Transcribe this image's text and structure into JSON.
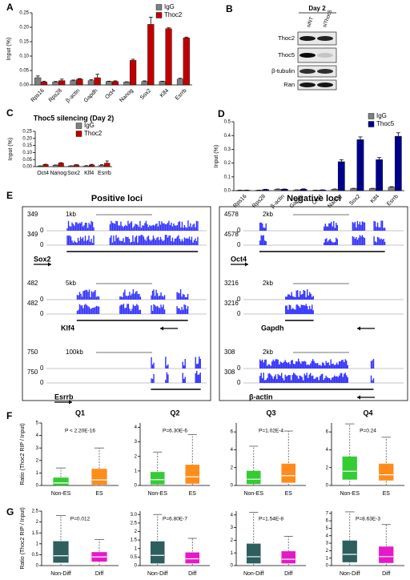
{
  "panel_labels": [
    "A",
    "B",
    "C",
    "D",
    "E",
    "F",
    "G"
  ],
  "blot": {
    "day": "Day 2",
    "lanes": [
      "siNT",
      "siThoc5"
    ],
    "rows": [
      "Thoc2",
      "Thoc5",
      "β-tubulin",
      "Ran"
    ]
  },
  "tracks": {
    "positive_title": "Positive loci",
    "negative_title": "Negative loci",
    "positive": [
      {
        "gene": "Sox2",
        "scale": "1kb",
        "max": 349,
        "min": 0
      },
      {
        "gene": "Klf4",
        "scale": "5kb",
        "max": 482,
        "min": 0
      },
      {
        "gene": "Esrrb",
        "scale": "100kb",
        "max": 750,
        "min": 0
      }
    ],
    "negative": [
      {
        "gene": "Oct4",
        "scale": "2kb",
        "max": 4578,
        "min": 0
      },
      {
        "gene": "Gapdh",
        "scale": "2kb",
        "max": 3216,
        "min": 0
      },
      {
        "gene": "β-actin",
        "scale": "2kb",
        "max": 308,
        "min": 0
      }
    ]
  },
  "chart_data": [
    {
      "type": "bar",
      "ylabel": "Input (%)",
      "categories": [
        "Rps16",
        "Rps28",
        "β-actin",
        "Gapdh",
        "Oct4",
        "Nanog",
        "Sox2",
        "Klf4",
        "Esrrb"
      ],
      "ylim": [
        0,
        0.25
      ],
      "yticks": [
        {
          "value": 0,
          "label": "0.00"
        },
        0.05,
        {
          "value": 0.1,
          "label": "0.10"
        },
        0.15,
        {
          "value": 0.2,
          "label": "0.20"
        },
        0.25
      ],
      "legend": "upper right",
      "series": [
        {
          "name": "IgG",
          "color": "#7f7f7f",
          "values": [
            0.025,
            0.01,
            0.015,
            0.015,
            0.012,
            0.01,
            0.012,
            0.012,
            0.02
          ],
          "errors": [
            0.006,
            0.002,
            0.002,
            0.003,
            0.001,
            0.001,
            0.002,
            0.001,
            0.003
          ]
        },
        {
          "name": "Thoc2",
          "color": "#c00000",
          "values": [
            0.01,
            0.015,
            0.02,
            0.025,
            0.012,
            0.085,
            0.21,
            0.195,
            0.163
          ],
          "errors": [
            0.003,
            0.005,
            0.002,
            0.012,
            0.002,
            0.004,
            0.025,
            0.003,
            0.003
          ]
        }
      ]
    },
    {
      "type": "bar",
      "title": "Thoc5 silencing (Day 2)",
      "ylabel": "Input (%)",
      "categories": [
        "Oct4",
        "Nanog",
        "Sox2",
        "Klf4",
        "Esrrb"
      ],
      "ylim": [
        0,
        0.25
      ],
      "yticks": [
        {
          "value": 0,
          "label": "0.00"
        },
        0.05,
        {
          "value": 0.1,
          "label": "0.10"
        },
        0.15,
        {
          "value": 0.2,
          "label": "0.20"
        },
        0.25
      ],
      "legend": "upper right",
      "series": [
        {
          "name": "IgG",
          "color": "#7f7f7f",
          "values": [
            0.005,
            0.01,
            0.005,
            0.005,
            0.01
          ],
          "errors": [
            0.001,
            0.002,
            0.001,
            0.002,
            0.004
          ]
        },
        {
          "name": "Thoc2",
          "color": "#c00000",
          "values": [
            0.015,
            0.025,
            0.012,
            0.012,
            0.025
          ],
          "errors": [
            0.002,
            0.003,
            0.002,
            0.004,
            0.015
          ]
        }
      ]
    },
    {
      "type": "bar",
      "ylabel": "Input (%)",
      "categories": [
        "Rps16",
        "Rps28",
        "β-actin",
        "Gapdh",
        "Oct4",
        "Nanog",
        "Sox2",
        "Klf4",
        "Esrrb"
      ],
      "ylim": [
        0,
        0.5
      ],
      "yticks": [
        {
          "value": 0,
          "label": "0.0"
        },
        0.1,
        0.2,
        0.3,
        0.4,
        0.5
      ],
      "legend": "upper right",
      "series": [
        {
          "name": "IgG",
          "color": "#7f7f7f",
          "values": [
            0.003,
            0.003,
            0.01,
            0.005,
            0.003,
            0.01,
            0.015,
            0.015,
            0.025
          ],
          "errors": [
            0.001,
            0.001,
            0.002,
            0.001,
            0.001,
            0.002,
            0.002,
            0.002,
            0.004
          ]
        },
        {
          "name": "Thoc5",
          "color": "#00008b",
          "values": [
            0.003,
            0.008,
            0.01,
            0.01,
            0.005,
            0.21,
            0.37,
            0.225,
            0.395
          ],
          "errors": [
            0.001,
            0.002,
            0.002,
            0.003,
            0.001,
            0.015,
            0.02,
            0.015,
            0.025
          ]
        }
      ]
    },
    {
      "type": "box",
      "title": "Q1",
      "annotation": "P < 2.20E-16",
      "ylabel": "Ratio (Thoc2 RIP / Input)",
      "categories": [
        "Non-ES",
        "ES"
      ],
      "colors": [
        "#33cc33",
        "#ff8c1a"
      ],
      "ylim": [
        0,
        5
      ],
      "yticks": [
        0,
        1,
        2,
        3,
        4,
        5
      ],
      "boxes": [
        {
          "low": 0,
          "q1": 0.05,
          "median": 0.2,
          "q3": 0.6,
          "high": 1.4
        },
        {
          "low": 0,
          "q1": 0.1,
          "median": 0.45,
          "q3": 1.3,
          "high": 3.0
        }
      ]
    },
    {
      "type": "box",
      "title": "Q2",
      "annotation": "P=6.30E-6",
      "categories": [
        "Non-ES",
        "ES"
      ],
      "colors": [
        "#33cc33",
        "#ff8c1a"
      ],
      "ylim": [
        0,
        4.3
      ],
      "yticks": [
        0,
        1,
        2,
        3,
        4
      ],
      "boxes": [
        {
          "low": 0,
          "q1": 0.1,
          "median": 0.4,
          "q3": 0.9,
          "high": 2.3
        },
        {
          "low": 0,
          "q1": 0.15,
          "median": 0.6,
          "q3": 1.4,
          "high": 3.5
        }
      ]
    },
    {
      "type": "box",
      "title": "Q3",
      "annotation": "P=1.02E-4",
      "categories": [
        "Non-ES",
        "ES"
      ],
      "colors": [
        "#33cc33",
        "#ff8c1a"
      ],
      "ylim": [
        0,
        7
      ],
      "yticks": [
        0,
        2,
        4,
        6
      ],
      "boxes": [
        {
          "low": 0,
          "q1": 0.2,
          "median": 0.7,
          "q3": 1.6,
          "high": 4.4
        },
        {
          "low": 0,
          "q1": 0.35,
          "median": 1.1,
          "q3": 2.4,
          "high": 6.1
        }
      ]
    },
    {
      "type": "box",
      "title": "Q4",
      "annotation": "P=0.24",
      "categories": [
        "Non-ES",
        "ES"
      ],
      "colors": [
        "#33cc33",
        "#ff8c1a"
      ],
      "ylim": [
        0,
        7
      ],
      "yticks": [
        0,
        2,
        4,
        6
      ],
      "boxes": [
        {
          "low": 0,
          "q1": 0.7,
          "median": 1.6,
          "q3": 3.2,
          "high": 6.9
        },
        {
          "low": 0,
          "q1": 0.6,
          "median": 1.2,
          "q3": 2.4,
          "high": 5.4
        }
      ]
    },
    {
      "type": "box",
      "annotation": "P=0.012",
      "ylabel": "Ratio (Thoc2 RIP / Input)",
      "categories": [
        "Non-Diff",
        "Diff"
      ],
      "colors": [
        "#2e5e5e",
        "#e619c8"
      ],
      "ylim": [
        0,
        2.5
      ],
      "yticks": [
        0,
        0.5,
        1,
        1.5,
        2,
        2.5
      ],
      "boxes": [
        {
          "low": 0,
          "q1": 0.15,
          "median": 0.45,
          "q3": 1.1,
          "high": 2.3
        },
        {
          "low": 0,
          "q1": 0.2,
          "median": 0.4,
          "q3": 0.6,
          "high": 1.2
        }
      ]
    },
    {
      "type": "box",
      "annotation": "P=6.80E-7",
      "categories": [
        "Non-Diff",
        "Diff"
      ],
      "colors": [
        "#2e5e5e",
        "#e619c8"
      ],
      "ylim": [
        0,
        3.2
      ],
      "yticks": [
        0,
        0.5,
        1,
        1.5,
        2,
        2.5,
        {
          "value": 3,
          "label": "3.0"
        }
      ],
      "boxes": [
        {
          "low": 0,
          "q1": 0.15,
          "median": 0.6,
          "q3": 1.4,
          "high": 3.0
        },
        {
          "low": 0,
          "q1": 0.15,
          "median": 0.4,
          "q3": 0.75,
          "high": 1.6
        }
      ]
    },
    {
      "type": "box",
      "annotation": "P=1.54E-8",
      "categories": [
        "Non-Diff",
        "Diff"
      ],
      "colors": [
        "#2e5e5e",
        "#e619c8"
      ],
      "ylim": [
        0,
        4.3
      ],
      "yticks": [
        0,
        1,
        2,
        3,
        4
      ],
      "boxes": [
        {
          "low": 0,
          "q1": 0.2,
          "median": 0.7,
          "q3": 1.7,
          "high": 4.2
        },
        {
          "low": 0,
          "q1": 0.2,
          "median": 0.5,
          "q3": 1.1,
          "high": 2.3
        }
      ]
    },
    {
      "type": "box",
      "annotation": "P=8.63E-3",
      "categories": [
        "Non-Diff",
        "Diff"
      ],
      "colors": [
        "#2e5e5e",
        "#e619c8"
      ],
      "ylim": [
        0,
        7.3
      ],
      "yticks": [
        0,
        1,
        2,
        3,
        4,
        5,
        6,
        7
      ],
      "boxes": [
        {
          "low": 0,
          "q1": 0.5,
          "median": 1.5,
          "q3": 3.3,
          "high": 7.2
        },
        {
          "low": 0,
          "q1": 0.4,
          "median": 1.2,
          "q3": 2.5,
          "high": 5.5
        }
      ]
    }
  ]
}
